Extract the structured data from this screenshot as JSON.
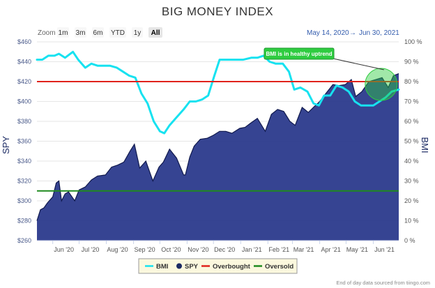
{
  "chart_data": {
    "type": "line",
    "title": "BIG MONEY INDEX",
    "range_selector": {
      "zoom_label": "Zoom",
      "buttons": [
        "1m",
        "3m",
        "6m",
        "YTD",
        "1y",
        "All"
      ],
      "selected": "All"
    },
    "date_range": {
      "from": "May 14, 2020",
      "arrow": "→",
      "to": "Jun 30, 2021"
    },
    "left_axis": {
      "title": "SPY",
      "ticks": [
        "$260",
        "$280",
        "$300",
        "$320",
        "$340",
        "$360",
        "$380",
        "$400",
        "$420",
        "$440",
        "$460"
      ],
      "min": 260,
      "max": 460
    },
    "right_axis": {
      "title": "BMI",
      "ticks": [
        "0 %",
        "10 %",
        "20 %",
        "30 %",
        "40 %",
        "50 %",
        "60 %",
        "70 %",
        "80 %",
        "90 %",
        "100 %"
      ],
      "min": 0,
      "max": 100
    },
    "x_ticks": [
      {
        "label": "Jun '20",
        "date": "2020-06-01"
      },
      {
        "label": "Jul '20",
        "date": "2020-07-01"
      },
      {
        "label": "Aug '20",
        "date": "2020-08-01"
      },
      {
        "label": "Sep '20",
        "date": "2020-09-01"
      },
      {
        "label": "Oct '20",
        "date": "2020-10-01"
      },
      {
        "label": "Nov '20",
        "date": "2020-11-01"
      },
      {
        "label": "Dec '20",
        "date": "2020-12-01"
      },
      {
        "label": "Jan '21",
        "date": "2021-01-01"
      },
      {
        "label": "Feb '21",
        "date": "2021-02-01"
      },
      {
        "label": "Mar '21",
        "date": "2021-03-01"
      },
      {
        "label": "Apr '21",
        "date": "2021-04-01"
      },
      {
        "label": "May '21",
        "date": "2021-05-01"
      },
      {
        "label": "Jun '21",
        "date": "2021-06-01"
      }
    ],
    "x_start": "2020-05-14",
    "x_end": "2021-06-30",
    "series": [
      {
        "name": "SPY",
        "axis": "left",
        "color": "#2b3a8c",
        "points": [
          [
            "2020-05-14",
            280
          ],
          [
            "2020-05-18",
            291
          ],
          [
            "2020-05-22",
            293
          ],
          [
            "2020-05-26",
            298
          ],
          [
            "2020-06-01",
            304
          ],
          [
            "2020-06-05",
            318
          ],
          [
            "2020-06-08",
            320
          ],
          [
            "2020-06-11",
            300
          ],
          [
            "2020-06-15",
            307
          ],
          [
            "2020-06-19",
            309
          ],
          [
            "2020-06-26",
            300
          ],
          [
            "2020-07-01",
            311
          ],
          [
            "2020-07-08",
            314
          ],
          [
            "2020-07-15",
            321
          ],
          [
            "2020-07-22",
            325
          ],
          [
            "2020-07-31",
            326
          ],
          [
            "2020-08-07",
            334
          ],
          [
            "2020-08-14",
            336
          ],
          [
            "2020-08-21",
            339
          ],
          [
            "2020-08-28",
            350
          ],
          [
            "2020-09-02",
            357
          ],
          [
            "2020-09-08",
            333
          ],
          [
            "2020-09-15",
            340
          ],
          [
            "2020-09-23",
            320
          ],
          [
            "2020-09-30",
            334
          ],
          [
            "2020-10-05",
            339
          ],
          [
            "2020-10-12",
            352
          ],
          [
            "2020-10-20",
            343
          ],
          [
            "2020-10-28",
            326
          ],
          [
            "2020-10-30",
            326
          ],
          [
            "2020-11-04",
            344
          ],
          [
            "2020-11-09",
            355
          ],
          [
            "2020-11-16",
            362
          ],
          [
            "2020-11-24",
            363
          ],
          [
            "2020-12-01",
            366
          ],
          [
            "2020-12-08",
            370
          ],
          [
            "2020-12-15",
            370
          ],
          [
            "2020-12-22",
            368
          ],
          [
            "2020-12-31",
            373
          ],
          [
            "2021-01-06",
            374
          ],
          [
            "2021-01-12",
            378
          ],
          [
            "2021-01-20",
            383
          ],
          [
            "2021-01-29",
            370
          ],
          [
            "2021-02-05",
            387
          ],
          [
            "2021-02-12",
            392
          ],
          [
            "2021-02-19",
            390
          ],
          [
            "2021-02-26",
            380
          ],
          [
            "2021-03-04",
            376
          ],
          [
            "2021-03-12",
            394
          ],
          [
            "2021-03-19",
            389
          ],
          [
            "2021-03-26",
            395
          ],
          [
            "2021-04-01",
            400
          ],
          [
            "2021-04-08",
            408
          ],
          [
            "2021-04-16",
            417
          ],
          [
            "2021-04-23",
            416
          ],
          [
            "2021-04-30",
            417
          ],
          [
            "2021-05-07",
            422
          ],
          [
            "2021-05-12",
            405
          ],
          [
            "2021-05-19",
            410
          ],
          [
            "2021-05-27",
            420
          ],
          [
            "2021-06-04",
            422
          ],
          [
            "2021-06-11",
            424
          ],
          [
            "2021-06-18",
            414
          ],
          [
            "2021-06-24",
            426
          ],
          [
            "2021-06-30",
            428
          ]
        ]
      },
      {
        "name": "BMI",
        "axis": "right",
        "color": "#17e2f0",
        "points": [
          [
            "2020-05-14",
            91
          ],
          [
            "2020-05-20",
            91
          ],
          [
            "2020-05-27",
            93
          ],
          [
            "2020-06-03",
            93
          ],
          [
            "2020-06-08",
            94
          ],
          [
            "2020-06-15",
            92
          ],
          [
            "2020-06-24",
            95
          ],
          [
            "2020-06-30",
            91
          ],
          [
            "2020-07-08",
            87
          ],
          [
            "2020-07-15",
            89
          ],
          [
            "2020-07-22",
            88
          ],
          [
            "2020-07-29",
            88
          ],
          [
            "2020-08-05",
            88
          ],
          [
            "2020-08-13",
            87
          ],
          [
            "2020-08-20",
            85
          ],
          [
            "2020-08-27",
            83
          ],
          [
            "2020-09-03",
            82
          ],
          [
            "2020-09-10",
            74
          ],
          [
            "2020-09-17",
            69
          ],
          [
            "2020-09-24",
            60
          ],
          [
            "2020-10-01",
            55
          ],
          [
            "2020-10-06",
            54
          ],
          [
            "2020-10-12",
            58
          ],
          [
            "2020-10-20",
            62
          ],
          [
            "2020-10-28",
            66
          ],
          [
            "2020-11-04",
            70
          ],
          [
            "2020-11-11",
            70
          ],
          [
            "2020-11-18",
            71
          ],
          [
            "2020-11-25",
            73
          ],
          [
            "2020-12-02",
            83
          ],
          [
            "2020-12-08",
            91
          ],
          [
            "2020-12-16",
            91
          ],
          [
            "2020-12-24",
            91
          ],
          [
            "2021-01-04",
            91
          ],
          [
            "2021-01-13",
            92
          ],
          [
            "2021-01-20",
            92
          ],
          [
            "2021-01-27",
            93
          ],
          [
            "2021-02-03",
            90
          ],
          [
            "2021-02-10",
            89
          ],
          [
            "2021-02-18",
            89
          ],
          [
            "2021-02-25",
            85
          ],
          [
            "2021-03-03",
            76
          ],
          [
            "2021-03-10",
            77
          ],
          [
            "2021-03-18",
            75
          ],
          [
            "2021-03-25",
            69
          ],
          [
            "2021-03-31",
            68
          ],
          [
            "2021-04-06",
            73
          ],
          [
            "2021-04-13",
            73
          ],
          [
            "2021-04-20",
            78
          ],
          [
            "2021-04-27",
            77
          ],
          [
            "2021-05-04",
            75
          ],
          [
            "2021-05-11",
            70
          ],
          [
            "2021-05-18",
            68
          ],
          [
            "2021-05-25",
            68
          ],
          [
            "2021-06-01",
            68
          ],
          [
            "2021-06-08",
            70
          ],
          [
            "2021-06-15",
            72
          ],
          [
            "2021-06-22",
            75
          ],
          [
            "2021-06-30",
            76
          ]
        ]
      }
    ],
    "plot_lines": [
      {
        "name": "Overbought",
        "axis": "right",
        "value": 80,
        "color": "#e0221c"
      },
      {
        "name": "Oversold",
        "axis": "right",
        "value": 25,
        "color": "#1f8a1f"
      }
    ],
    "annotation": {
      "text": "BMI is in healthy uptrend",
      "color": "#2ecc40",
      "target_date": "2021-06-10",
      "target_value": 80
    },
    "legend": {
      "placement": "bottom-center",
      "items": [
        {
          "label": "BMI",
          "color": "#17e2f0",
          "symbol": "line"
        },
        {
          "label": "SPY",
          "color": "#1b2a63",
          "symbol": "dot"
        },
        {
          "label": "Overbought",
          "color": "#e0221c",
          "symbol": "line"
        },
        {
          "label": "Oversold",
          "color": "#1f8a1f",
          "symbol": "line"
        }
      ]
    },
    "credit": "End of day data sourced from tiingo.com",
    "grid": true
  }
}
